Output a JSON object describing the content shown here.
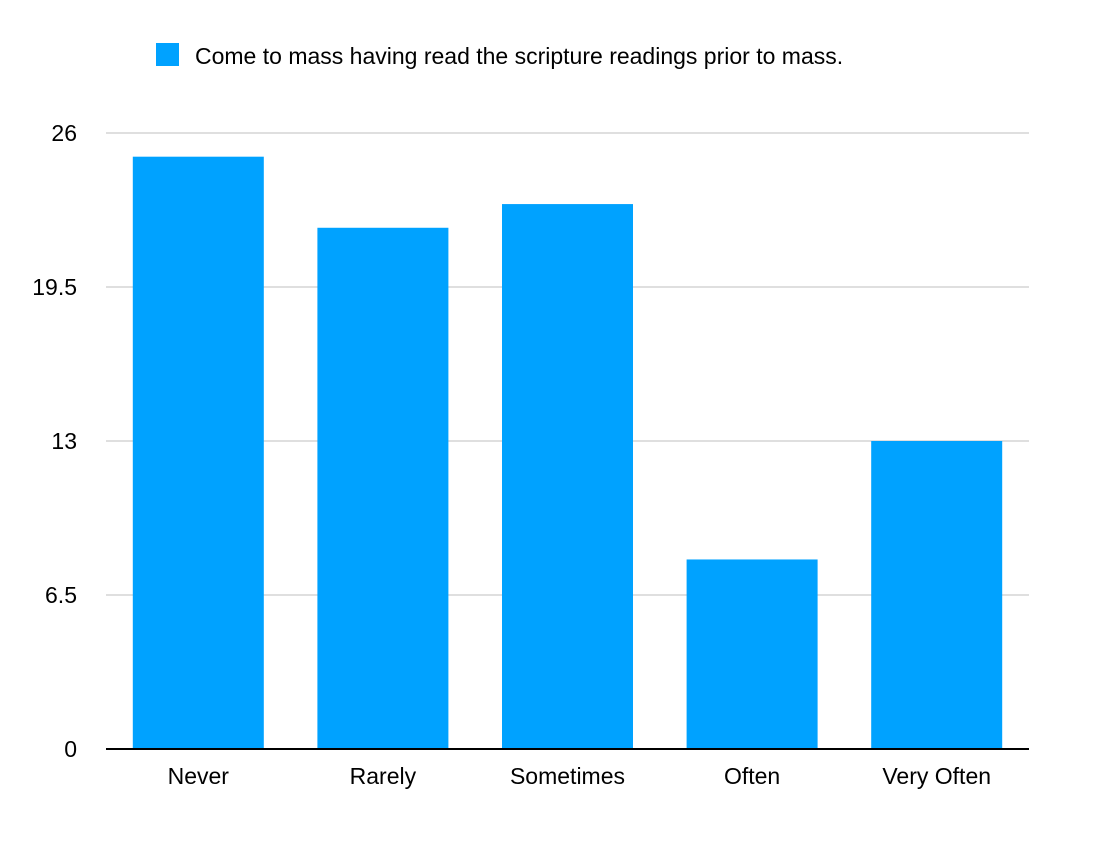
{
  "chart_data": {
    "type": "bar",
    "title": "",
    "xlabel": "",
    "ylabel": "",
    "categories": [
      "Never",
      "Rarely",
      "Sometimes",
      "Often",
      "Very Often"
    ],
    "series": [
      {
        "name": "Come to mass having read the scripture readings prior to mass.",
        "color": "#00A2FF",
        "values": [
          25,
          22,
          23,
          8,
          13
        ]
      }
    ],
    "ylim": [
      0,
      26
    ],
    "yticks": [
      0,
      6.5,
      13,
      19.5,
      26
    ],
    "ytick_labels": [
      "0",
      "6.5",
      "13",
      "19.5",
      "26"
    ],
    "grid": true,
    "legend_position": "top-center"
  },
  "colors": {
    "bar": "#00A2FF",
    "grid": "#BFBFBF",
    "axis": "#000000"
  }
}
